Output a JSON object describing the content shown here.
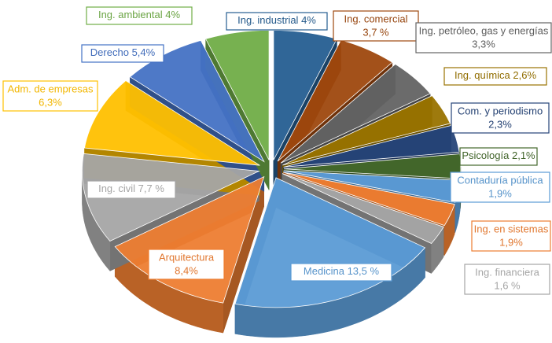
{
  "chart_data": {
    "type": "pie",
    "categories": [
      "Ing. industrial",
      "Ing. comercial",
      "Ing. petróleo, gas y energías",
      "Ing. química",
      "Com. y periodismo",
      "Psicología",
      "Contaduría pública",
      "Ing. en sistemas",
      "Ing. financiera",
      "Medicina",
      "Arquitectura",
      "Ing. civil",
      "Adm. de empresas",
      "Derecho",
      "Ing. ambiental"
    ],
    "values": [
      4,
      3.7,
      3.3,
      2.6,
      2.3,
      2.1,
      1.9,
      1.9,
      1.6,
      13.5,
      8.4,
      7.7,
      6.3,
      5.4,
      4
    ],
    "value_labels": [
      "4%",
      "3,7 %",
      "3,3%",
      "2,6%",
      "2,3%",
      "2,1%",
      "1,9%",
      "1,9%",
      "1,6 %",
      "13,5 %",
      "8,4%",
      "7,7 %",
      "6,3%",
      "5,4%",
      "4%"
    ],
    "colors": [
      "#255e91",
      "#9e480e",
      "#636363",
      "#997300",
      "#264478",
      "#43682b",
      "#5b9bd5",
      "#ed7d31",
      "#a5a5a5",
      "#5b9bd5",
      "#ed7d31",
      "#a5a5a5",
      "#ffc000",
      "#4472c4",
      "#70ad47"
    ]
  }
}
